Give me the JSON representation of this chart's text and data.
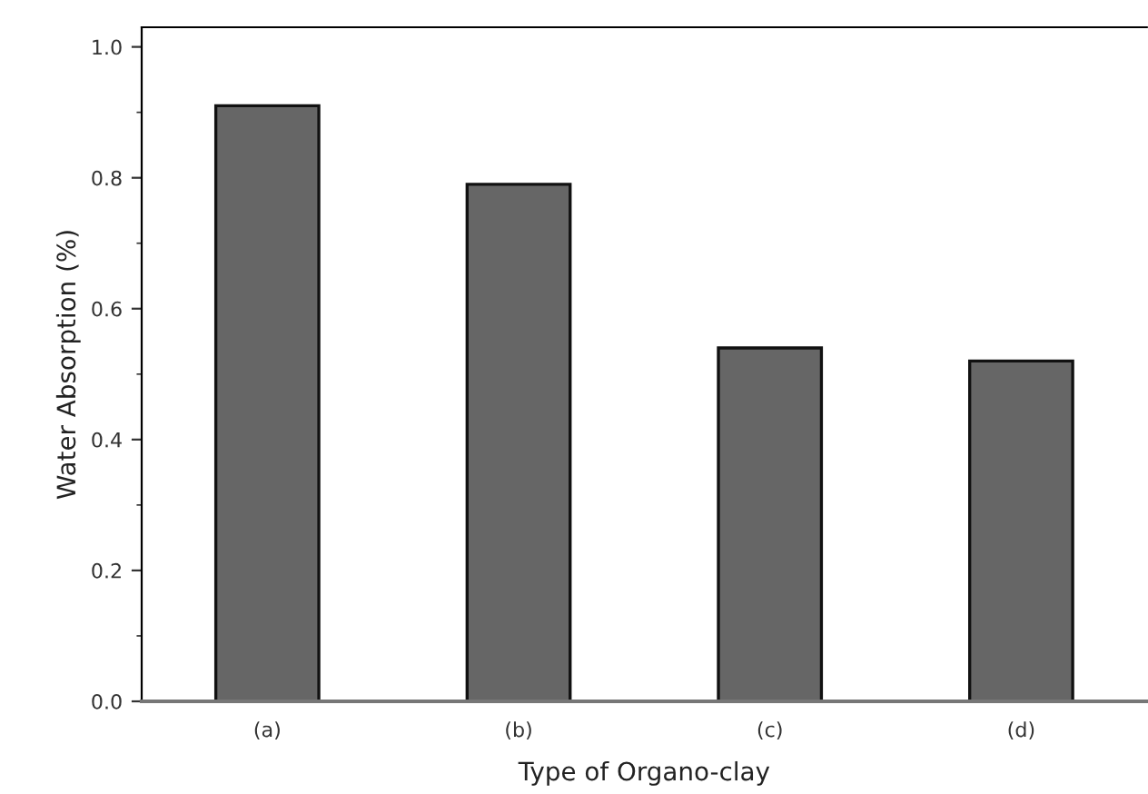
{
  "chart_data": {
    "type": "bar",
    "xlabel": "Type of Organo-clay",
    "ylabel": "Water Absorption (%)",
    "categories": [
      "(a)",
      "(b)",
      "(c)",
      "(d)"
    ],
    "values": [
      0.91,
      0.79,
      0.54,
      0.52
    ],
    "color": "#666666",
    "ylim": [
      0,
      1.03
    ],
    "yticks": [
      {
        "value": 0,
        "label": "0.0"
      },
      0.2,
      0.4,
      0.6,
      0.8,
      {
        "value": 1,
        "label": "1.0"
      }
    ],
    "grid": false
  }
}
